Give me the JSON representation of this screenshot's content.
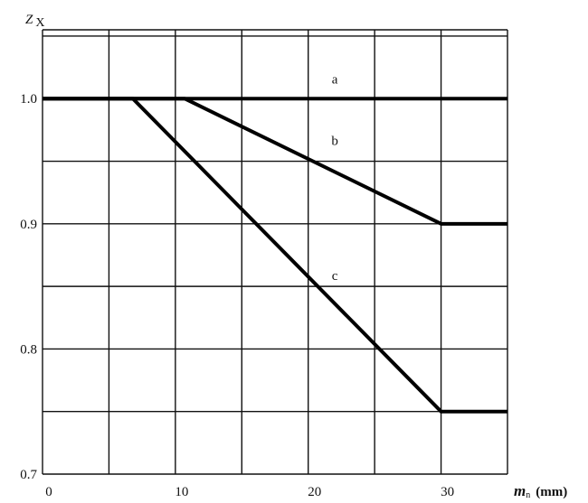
{
  "chart_data": {
    "type": "line",
    "title": "",
    "ylabel": "Z",
    "ylabel_sub": "X",
    "xlabel": "m",
    "xlabel_sub": "n",
    "xlabel_unit": "(mm)",
    "xlim": [
      0,
      35
    ],
    "ylim": [
      0.7,
      1.055
    ],
    "grid": true,
    "x_grid_step": 5,
    "y_grid_step": 0.05,
    "x_ticks": [
      0,
      10,
      20,
      30
    ],
    "x_tick_labels": [
      "0",
      "10",
      "20",
      "30"
    ],
    "y_ticks": [
      1.0,
      0.9,
      0.8,
      0.7
    ],
    "y_tick_labels": [
      "1.0",
      "0.9",
      "0.8",
      "0.7"
    ],
    "series": [
      {
        "name": "a",
        "x": [
          0,
          35
        ],
        "y": [
          1.0,
          1.0
        ],
        "label_at": [
          22,
          1.012
        ]
      },
      {
        "name": "b",
        "x": [
          0,
          10.7,
          30,
          35
        ],
        "y": [
          1.0,
          1.0,
          0.9,
          0.9
        ],
        "label_at": [
          22,
          0.963
        ]
      },
      {
        "name": "c",
        "x": [
          0,
          6.8,
          30,
          35
        ],
        "y": [
          1.0,
          1.0,
          0.75,
          0.75
        ],
        "label_at": [
          22,
          0.855
        ]
      }
    ],
    "line_color": "#000000"
  }
}
